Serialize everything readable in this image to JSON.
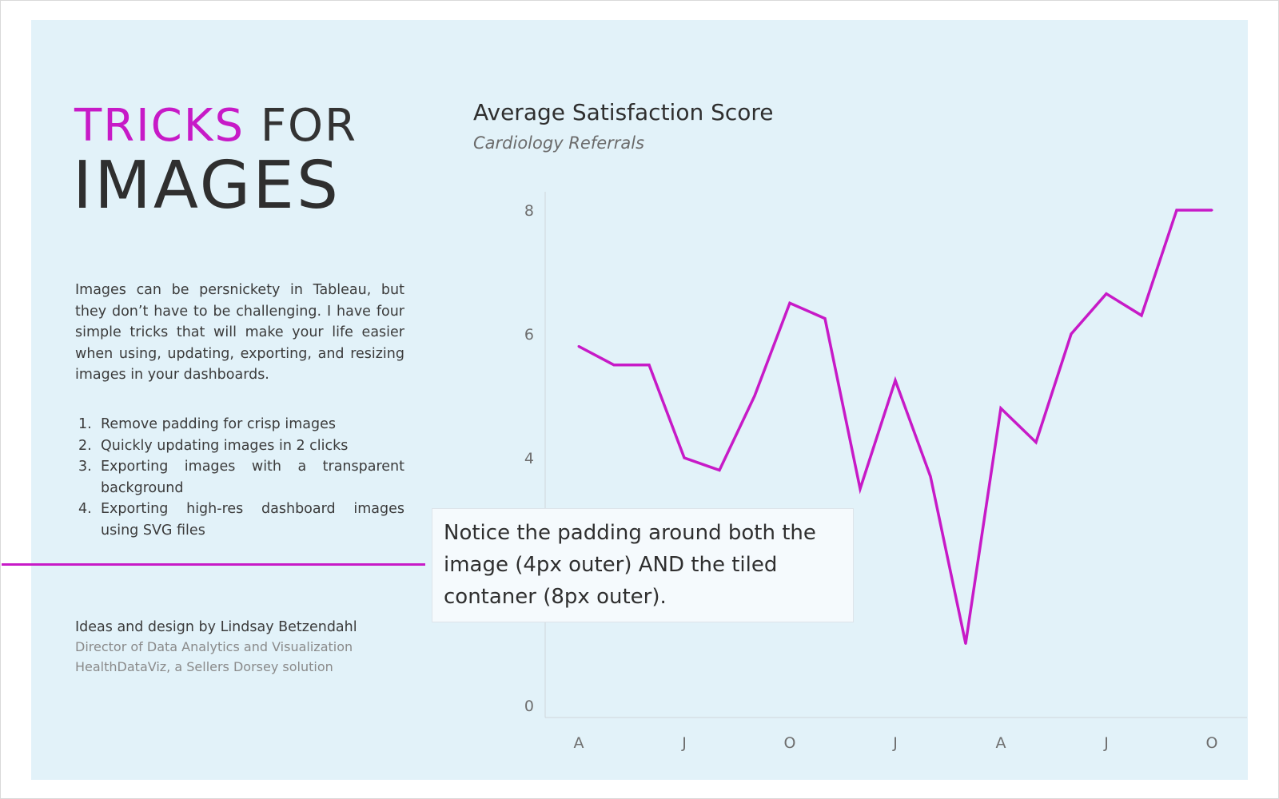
{
  "header": {
    "title_line1_pink": "TRICKS",
    "title_line1_dark": "FOR",
    "title_line2": "IMAGES"
  },
  "intro": "Images can be persnickety in Tableau, but they don’t have to be challenging. I have four simple tricks that will make your life easier when using, updating, exporting, and resizing images in your dashboards.",
  "tricks": [
    {
      "num": "1.",
      "text": "Remove padding for crisp images"
    },
    {
      "num": "2.",
      "text": "Quickly updating images in 2 clicks"
    },
    {
      "num": "3.",
      "text": "Exporting images with a transparent background"
    },
    {
      "num": "4.",
      "text": "Exporting high-res dashboard images using SVG files"
    }
  ],
  "credits": {
    "name": "Ideas and design by Lindsay Betzendahl",
    "role": "Director of Data Analytics and Visualization",
    "org": "HealthDataViz, a Sellers Dorsey solution"
  },
  "callout": "Notice the padding around both the image (4px outer) AND the tiled contaner (8px outer).",
  "colors": {
    "accent": "#c71ac7",
    "background": "#e2f2f9",
    "text": "#333333"
  },
  "chart_data": {
    "type": "line",
    "title": "Average Satisfaction Score",
    "subtitle": "Cardiology Referrals",
    "xlabel": "",
    "ylabel": "",
    "x_tick_labels": [
      "A",
      "J",
      "O",
      "J",
      "A",
      "J",
      "O"
    ],
    "x_tick_index": [
      0,
      3,
      6,
      9,
      12,
      15,
      18
    ],
    "y_ticks": [
      0,
      4,
      6,
      8
    ],
    "ylim": [
      0,
      8.4
    ],
    "grid": false,
    "series": [
      {
        "values": [
          5.8,
          5.5,
          5.5,
          4.0,
          3.8,
          5.0,
          6.5,
          6.25,
          3.5,
          5.25,
          3.7,
          1.0,
          4.8,
          4.25,
          6.0,
          6.65,
          6.3,
          8.0,
          8.0
        ]
      }
    ]
  }
}
